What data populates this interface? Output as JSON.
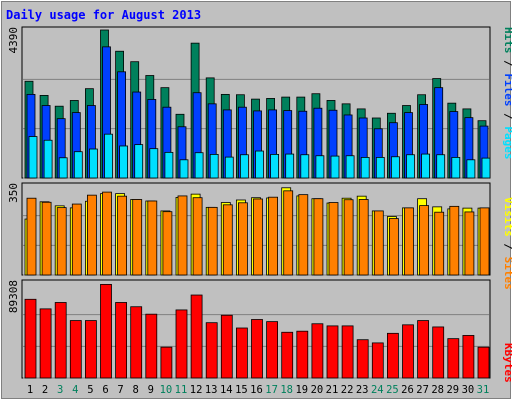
{
  "title": "Daily usage for August 2013",
  "colors": {
    "background": "#c0c0c0",
    "title": "#0000ff",
    "hits": "#00805c",
    "files": "#0040ff",
    "pages": "#00e0ff",
    "visits": "#ffff00",
    "sites": "#ff8000",
    "kbytes": "#ff0000"
  },
  "chart_data": [
    {
      "type": "bar",
      "title": "Daily usage for August 2013",
      "panel": "hits-files-pages",
      "categories": [
        "1",
        "2",
        "3",
        "4",
        "5",
        "6",
        "7",
        "8",
        "9",
        "10",
        "11",
        "12",
        "13",
        "14",
        "15",
        "16",
        "17",
        "18",
        "19",
        "20",
        "21",
        "22",
        "23",
        "24",
        "25",
        "26",
        "27",
        "28",
        "29",
        "30",
        "31"
      ],
      "weekend_categories": [
        "3",
        "4",
        "10",
        "11",
        "17",
        "18",
        "24",
        "25",
        "31"
      ],
      "y_tick_label": "4390",
      "ylim": [
        0,
        4390
      ],
      "grid": true,
      "right_labels": [
        "Pages",
        "Files",
        "Hits"
      ],
      "series": [
        {
          "name": "Hits",
          "values": [
            2870,
            2450,
            2130,
            2300,
            2650,
            4390,
            3760,
            3450,
            3040,
            2680,
            1890,
            4000,
            2970,
            2480,
            2470,
            2340,
            2360,
            2400,
            2400,
            2500,
            2300,
            2200,
            2050,
            1780,
            1920,
            2150,
            2470,
            2950,
            2220,
            2050,
            1700
          ]
        },
        {
          "name": "Files",
          "values": [
            2480,
            2150,
            1760,
            1940,
            2150,
            3890,
            3150,
            2550,
            2330,
            2100,
            1520,
            2530,
            2200,
            2020,
            2100,
            1990,
            2020,
            2000,
            1980,
            2070,
            2010,
            1870,
            1780,
            1460,
            1640,
            1940,
            2180,
            2680,
            1970,
            1790,
            1540
          ]
        },
        {
          "name": "Pages",
          "values": [
            1230,
            1120,
            600,
            780,
            860,
            1300,
            950,
            990,
            870,
            760,
            540,
            750,
            700,
            620,
            690,
            800,
            700,
            710,
            690,
            660,
            650,
            660,
            610,
            610,
            630,
            690,
            710,
            690,
            610,
            540,
            590
          ]
        }
      ]
    },
    {
      "type": "bar",
      "panel": "visits-sites",
      "categories": [
        "1",
        "2",
        "3",
        "4",
        "5",
        "6",
        "7",
        "8",
        "9",
        "10",
        "11",
        "12",
        "13",
        "14",
        "15",
        "16",
        "17",
        "18",
        "19",
        "20",
        "21",
        "22",
        "23",
        "24",
        "25",
        "26",
        "27",
        "28",
        "29",
        "30",
        "31"
      ],
      "y_tick_label": "350",
      "ylim": [
        0,
        350
      ],
      "grid": true,
      "right_labels": [
        "Sites",
        "Visits"
      ],
      "series": [
        {
          "name": "Visits",
          "values": [
            220,
            288,
            272,
            264,
            290,
            320,
            320,
            297,
            291,
            252,
            305,
            318,
            266,
            285,
            295,
            304,
            303,
            343,
            311,
            300,
            283,
            302,
            310,
            252,
            230,
            264,
            300,
            268,
            260,
            263,
            263
          ]
        },
        {
          "name": "Sites",
          "values": [
            302,
            286,
            265,
            279,
            314,
            326,
            310,
            297,
            291,
            249,
            311,
            304,
            266,
            276,
            284,
            299,
            306,
            331,
            316,
            300,
            285,
            296,
            297,
            252,
            222,
            264,
            273,
            247,
            270,
            248,
            264
          ]
        }
      ]
    },
    {
      "type": "bar",
      "panel": "kbytes",
      "categories": [
        "1",
        "2",
        "3",
        "4",
        "5",
        "6",
        "7",
        "8",
        "9",
        "10",
        "11",
        "12",
        "13",
        "14",
        "15",
        "16",
        "17",
        "18",
        "19",
        "20",
        "21",
        "22",
        "23",
        "24",
        "25",
        "26",
        "27",
        "28",
        "29",
        "30",
        "31"
      ],
      "y_tick_label": "89308",
      "ylim": [
        0,
        89308
      ],
      "grid": true,
      "right_labels": [
        "KBytes"
      ],
      "series": [
        {
          "name": "KBytes",
          "values": [
            74000,
            65000,
            71000,
            54000,
            54000,
            88000,
            71000,
            67000,
            60000,
            29000,
            64000,
            78000,
            52000,
            59000,
            47000,
            55000,
            53000,
            43000,
            44000,
            51000,
            49000,
            49000,
            36000,
            33000,
            42000,
            50000,
            54000,
            48000,
            37000,
            40000,
            29000
          ]
        }
      ]
    }
  ]
}
